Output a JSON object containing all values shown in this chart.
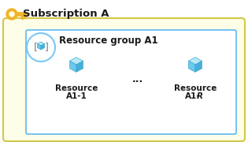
{
  "subscription_label": "Subscription A",
  "resource_group_label": "Resource group A1",
  "resource1_line1": "Resource",
  "resource1_line2": "A1-1",
  "resource2_line1": "Resource",
  "resource2_line2_normal": "A1-",
  "resource2_line2_italic": "R",
  "dots_label": "...",
  "outer_bg": "#FEFEE8",
  "outer_border": "#D4C84A",
  "inner_bg": "#FFFFFF",
  "inner_border": "#5BB8F5",
  "rg_circle_color": "#FFFFFF",
  "rg_circle_border": "#7BC8F5",
  "key_color": "#F0B429",
  "cube_top": "#B8E8F5",
  "cube_left": "#6CC8EE",
  "cube_right": "#4AAED8",
  "title_fontsize": 9.5,
  "group_fontsize": 8.5,
  "resource_fontsize": 7.5
}
